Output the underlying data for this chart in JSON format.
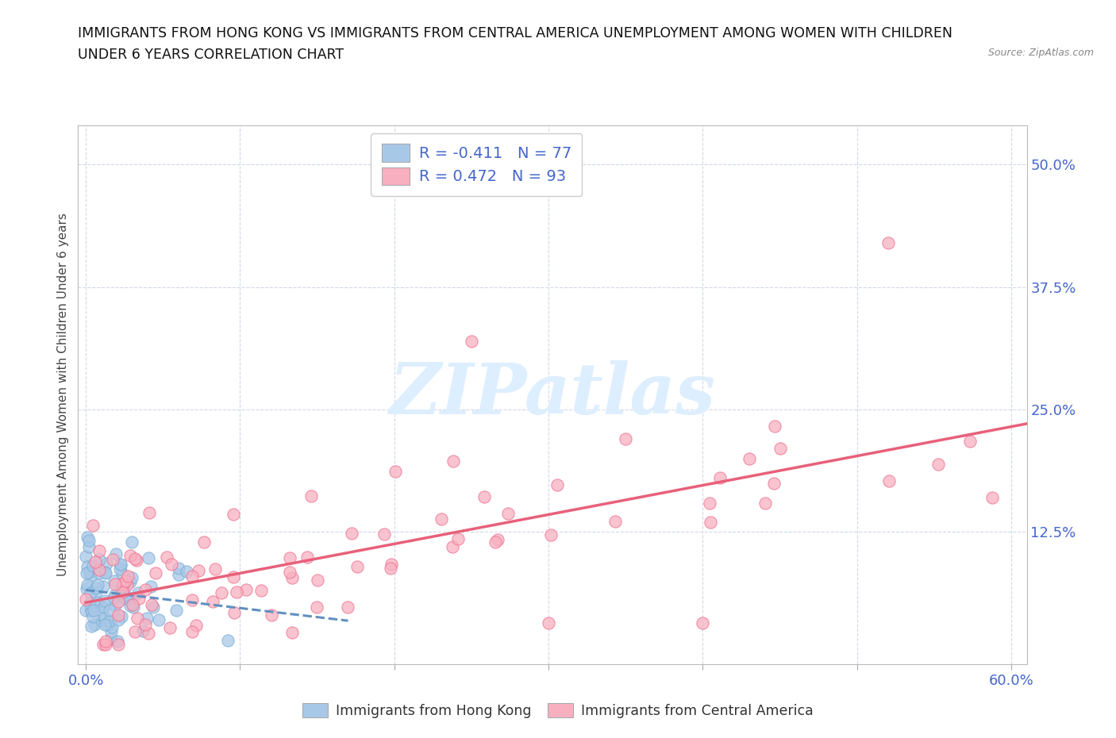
{
  "title_line1": "IMMIGRANTS FROM HONG KONG VS IMMIGRANTS FROM CENTRAL AMERICA UNEMPLOYMENT AMONG WOMEN WITH CHILDREN",
  "title_line2": "UNDER 6 YEARS CORRELATION CHART",
  "source": "Source: ZipAtlas.com",
  "ylabel": "Unemployment Among Women with Children Under 6 years",
  "legend1_label": "Immigrants from Hong Kong",
  "legend2_label": "Immigrants from Central America",
  "hk_R": "-0.411",
  "hk_N": "77",
  "ca_R": "0.472",
  "ca_N": "93",
  "hk_color": "#a8c8e8",
  "ca_color": "#f8b0c0",
  "hk_edge_color": "#7aafd4",
  "ca_edge_color": "#f07090",
  "hk_line_color": "#6090c0",
  "ca_line_color": "#e8607a",
  "watermark_color": "#ddeeff",
  "bg_color": "#ffffff",
  "grid_color": "#d0d8e8",
  "tick_color": "#4466cc",
  "xlim_max": 0.61,
  "ylim_max": 0.54,
  "x_tick_vals": [
    0.0,
    0.1,
    0.2,
    0.3,
    0.4,
    0.5,
    0.6
  ],
  "y_tick_vals": [
    0.125,
    0.25,
    0.375,
    0.5
  ]
}
